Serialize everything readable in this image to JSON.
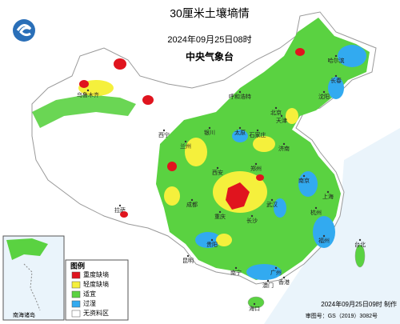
{
  "header": {
    "title": "30厘米土壤墒情",
    "subtitle": "2024年09月25日08时",
    "agency": "中央气象台"
  },
  "legend": {
    "title": "图例",
    "items": [
      {
        "label": "重度缺墒",
        "color": "#e0141e"
      },
      {
        "label": "轻度缺墒",
        "color": "#f5f03c"
      },
      {
        "label": "适宜",
        "color": "#5ad241"
      },
      {
        "label": "过湿",
        "color": "#32aaf0"
      },
      {
        "label": "无资料区",
        "color": "#ffffff"
      }
    ]
  },
  "footer": {
    "made": "2024年09月25日09时 制作",
    "approval": "审图号：GS（2019）3082号"
  },
  "inset": {
    "label": "南海诸岛"
  },
  "cities": [
    "乌鲁木齐",
    "拉萨",
    "西宁",
    "兰州",
    "银川",
    "呼和浩特",
    "北京",
    "天津",
    "石家庄",
    "太原",
    "济南",
    "郑州",
    "西安",
    "武汉",
    "南京",
    "上海",
    "杭州",
    "长沙",
    "重庆",
    "成都",
    "贵阳",
    "昆明",
    "南宁",
    "广州",
    "福州",
    "台北",
    "海口",
    "香港",
    "澳门",
    "哈尔滨",
    "长春",
    "沈阳"
  ]
}
